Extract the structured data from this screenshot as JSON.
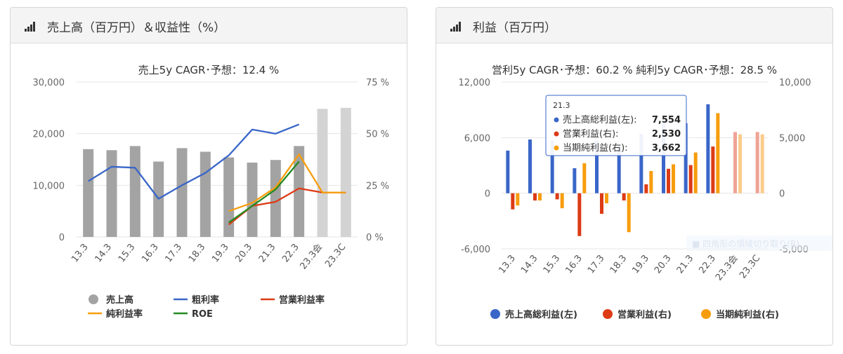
{
  "colors": {
    "gray": "#a3a3a3",
    "gray_light": "#d3d3d3",
    "blue": "#3a66c8",
    "red": "#dc3b16",
    "orange": "#f79d0c",
    "green": "#238a22",
    "pink_light": "#efa394",
    "orange_light": "#fbcc8c"
  },
  "left_panel": {
    "title": "売上高（百万円）＆収益性（%）",
    "icon": "signal-bars-icon",
    "chart_data": {
      "type": "bar",
      "subtitle": "売上5y CAGR･予想：12.4 %",
      "categories": [
        "13.3",
        "14.3",
        "15.3",
        "16.3",
        "17.3",
        "18.3",
        "19.3",
        "20.3",
        "21.3",
        "22.3",
        "23.3会",
        "23.3C"
      ],
      "y_left": {
        "min": 0,
        "max": 30000,
        "ticks": [
          "0",
          "10,000",
          "20,000",
          "30,000"
        ]
      },
      "y_right": {
        "min": 0,
        "max": 75,
        "ticks": [
          "0 %",
          "25 %",
          "50 %",
          "75 %"
        ]
      },
      "series": [
        {
          "name": "売上高",
          "type": "bar",
          "axis": "left",
          "values": [
            17000,
            16800,
            17600,
            14600,
            17200,
            16500,
            15400,
            14400,
            14900,
            17600,
            24800,
            25000
          ],
          "forecast_from_index": 10
        },
        {
          "name": "粗利率",
          "type": "line",
          "axis": "right",
          "values": [
            27,
            34,
            33.5,
            18.5,
            25,
            31,
            39.5,
            52,
            50,
            54.5,
            null,
            null
          ]
        },
        {
          "name": "営業利益率",
          "type": "line",
          "axis": "right",
          "values": [
            null,
            null,
            null,
            null,
            null,
            null,
            6,
            15,
            17,
            23.5,
            21.5,
            21.5
          ]
        },
        {
          "name": "純利益率",
          "type": "line",
          "axis": "right",
          "values": [
            null,
            null,
            null,
            null,
            null,
            null,
            12.5,
            16.5,
            24,
            40,
            21.5,
            21.5
          ]
        },
        {
          "name": "ROE",
          "type": "line",
          "axis": "right",
          "values": [
            null,
            null,
            null,
            null,
            null,
            null,
            7,
            15,
            23,
            36.5,
            null,
            null
          ]
        }
      ],
      "legend": [
        "売上高",
        "粗利率",
        "営業利益率",
        "純利益率",
        "ROE"
      ]
    }
  },
  "right_panel": {
    "title": "利益（百万円）",
    "icon": "signal-bars-icon",
    "chart_data": {
      "type": "bar",
      "subtitle": "営利5y CAGR･予想：60.2 %  純利5y CAGR･予想：28.5 %",
      "categories": [
        "13.3",
        "14.3",
        "15.3",
        "16.3",
        "17.3",
        "18.3",
        "19.3",
        "20.3",
        "21.3",
        "22.3",
        "23.3会",
        "23.3C"
      ],
      "y_left": {
        "min": -6000,
        "max": 12000,
        "ticks": [
          "-6,000",
          "0",
          "6,000",
          "12,000"
        ]
      },
      "y_right": {
        "min": -5000,
        "max": 10000,
        "ticks": [
          "-5,000",
          "0",
          "5,000",
          "10,000"
        ]
      },
      "series": [
        {
          "name": "売上高総利益(左)",
          "axis": "left",
          "values": [
            4600,
            5800,
            5700,
            2700,
            5700,
            5100,
            6400,
            7500,
            7554,
            9600,
            null,
            null
          ]
        },
        {
          "name": "営業利益(右)",
          "axis": "right",
          "values": [
            -1450,
            -650,
            -550,
            -3850,
            -1850,
            -650,
            800,
            2200,
            2530,
            4200,
            5500,
            5500
          ]
        },
        {
          "name": "当期純利益(右)",
          "axis": "right",
          "values": [
            -1100,
            -650,
            -1350,
            2700,
            -900,
            -3500,
            2000,
            2600,
            3662,
            7200,
            5300,
            5300
          ]
        }
      ],
      "forecast_from_index": 10,
      "legend": [
        "売上高総利益(左)",
        "営業利益(右)",
        "当期純利益(右)"
      ],
      "tooltip": {
        "category": "21.3",
        "rows": [
          {
            "label": "売上高総利益(左):",
            "value": "7,554"
          },
          {
            "label": "営業利益(右):",
            "value": "2,530"
          },
          {
            "label": "当期純利益(右):",
            "value": "3,662"
          }
        ]
      },
      "overlay_text": "四角形の領域切り取り(R)"
    }
  }
}
